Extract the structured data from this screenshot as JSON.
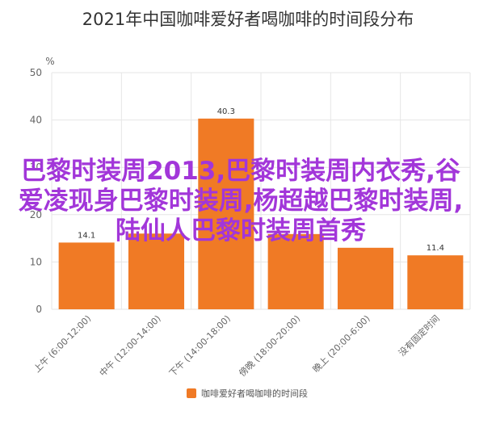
{
  "chart_data": {
    "type": "bar",
    "title": "2021年中国咖啡爱好者喝咖啡的时间段分布",
    "ylabel": "%",
    "categories": [
      "上午 (6:00-12:00)",
      "中午 (12:00-14:00)",
      "下午 (14:00-18:00)",
      "傍晚 (18:00-20:00)",
      "晚上 (20:00-6:00)",
      "没有固定时间"
    ],
    "series": [
      {
        "name": "咖啡爱好者喝咖啡的时间段",
        "values": [
          14.1,
          16.0,
          40.3,
          15.9,
          13.0,
          11.4
        ],
        "data_labels": [
          "14.1",
          "",
          "40.3",
          "",
          "",
          "11.4"
        ]
      }
    ],
    "yticks": [
      "0",
      "10",
      "20",
      "30",
      "40",
      "50"
    ],
    "ylim": [
      0,
      50
    ],
    "grid": true,
    "legend": "bottom-center",
    "bar_color": "#f07a25",
    "grid_color": "#e6e6e6"
  },
  "overlay": {
    "text": "巴黎时装周2013,巴黎时装周内衣秀,谷爱凌现身巴黎时装周,杨超越巴黎时装周,陆仙人巴黎时装周首秀",
    "color": "#a236d9"
  }
}
